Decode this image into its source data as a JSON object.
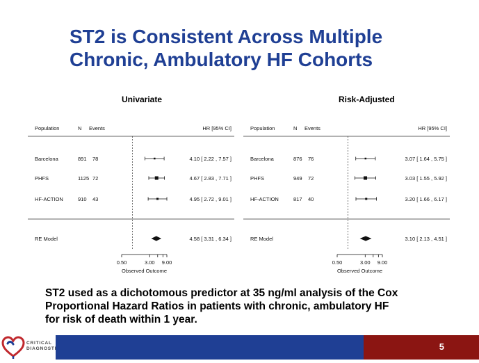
{
  "slide": {
    "title_line1": "ST2 is Consistent Across Multiple",
    "title_line2": "Chronic, Ambulatory HF Cohorts",
    "caption_line1": "ST2 used as a dichotomous predictor at 35 ng/ml analysis of the Cox",
    "caption_line2": "Proportional Hazard Ratios in patients with chronic, ambulatory HF",
    "caption_line3": "for risk of death within 1 year.",
    "page_number": "5",
    "logo_line1": "CRITICAL",
    "logo_line2": "DIAGNOSTICS",
    "colors": {
      "title": "#1f3f94",
      "footer_blue": "#1f3f94",
      "footer_red": "#8b1512"
    }
  },
  "chart_data": [
    {
      "type": "forest",
      "panel_title": "Univariate",
      "columns": {
        "population": "Population",
        "n": "N",
        "events": "Events",
        "hr": "HR [95% CI]"
      },
      "xlabel": "Observed Outcome",
      "xscale": "log",
      "xticks": [
        "0.50",
        "3.00",
        "9.00"
      ],
      "xlim": [
        0.5,
        9.0
      ],
      "reference_line": 1.0,
      "rows": [
        {
          "population": "Barcelona",
          "n": "891",
          "events": "78",
          "hr": 4.1,
          "lower": 2.22,
          "upper": 7.57,
          "label": "4.10 [ 2.22 , 7.57 ]"
        },
        {
          "population": "PHFS",
          "n": "1125",
          "events": "72",
          "hr": 4.67,
          "lower": 2.83,
          "upper": 7.71,
          "label": "4.67 [ 2.83 , 7.71 ]"
        },
        {
          "population": "HF-ACTION",
          "n": "910",
          "events": "43",
          "hr": 4.95,
          "lower": 2.72,
          "upper": 9.01,
          "label": "4.95 [ 2.72 , 9.01 ]"
        }
      ],
      "summary": {
        "population": "RE Model",
        "hr": 4.58,
        "lower": 3.31,
        "upper": 6.34,
        "label": "4.58 [ 3.31 , 6.34 ]"
      }
    },
    {
      "type": "forest",
      "panel_title": "Risk-Adjusted",
      "columns": {
        "population": "Population",
        "n": "N",
        "events": "Events",
        "hr": "HR [95% CI]"
      },
      "xlabel": "Observed Outcome",
      "xscale": "log",
      "xticks": [
        "0.50",
        "3.00",
        "9.00"
      ],
      "xlim": [
        0.5,
        9.0
      ],
      "reference_line": 1.0,
      "rows": [
        {
          "population": "Barcelona",
          "n": "876",
          "events": "76",
          "hr": 3.07,
          "lower": 1.64,
          "upper": 5.75,
          "label": "3.07 [ 1.64 , 5.75 ]"
        },
        {
          "population": "PHFS",
          "n": "949",
          "events": "72",
          "hr": 3.03,
          "lower": 1.55,
          "upper": 5.92,
          "label": "3.03 [ 1.55 , 5.92 ]"
        },
        {
          "population": "HF-ACTION",
          "n": "817",
          "events": "40",
          "hr": 3.2,
          "lower": 1.66,
          "upper": 6.17,
          "label": "3.20 [ 1.66 , 6.17 ]"
        }
      ],
      "summary": {
        "population": "RE Model",
        "hr": 3.1,
        "lower": 2.13,
        "upper": 4.51,
        "label": "3.10 [ 2.13 , 4.51 ]"
      }
    }
  ]
}
